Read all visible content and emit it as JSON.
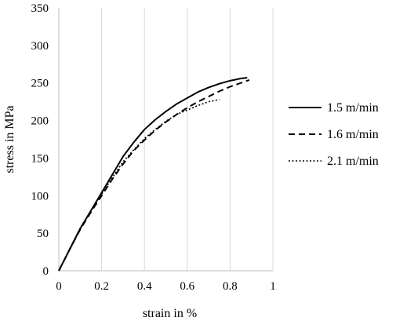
{
  "chart_data": {
    "type": "line",
    "title": "",
    "xlabel": "strain in %",
    "ylabel": "stress in MPa",
    "xlim": [
      0,
      1
    ],
    "ylim": [
      0,
      350
    ],
    "x_ticks": [
      0,
      0.2,
      0.4,
      0.6,
      0.8,
      1
    ],
    "x_tick_labels": [
      "0",
      "0.2",
      "0.4",
      "0.6",
      "0.8",
      "1"
    ],
    "y_ticks": [
      0,
      50,
      100,
      150,
      200,
      250,
      300,
      350
    ],
    "y_tick_labels": [
      "0",
      "50",
      "100",
      "150",
      "200",
      "250",
      "300",
      "350"
    ],
    "grid": "vertical",
    "legend_position": "right",
    "series": [
      {
        "name": "1.5 m/min",
        "line_style": "solid",
        "color": "#000000",
        "x": [
          0,
          0.05,
          0.1,
          0.15,
          0.2,
          0.25,
          0.3,
          0.35,
          0.4,
          0.45,
          0.5,
          0.55,
          0.6,
          0.65,
          0.7,
          0.75,
          0.8,
          0.85,
          0.88
        ],
        "y": [
          0,
          28,
          56,
          80,
          104,
          128,
          152,
          171,
          188,
          201,
          212,
          222,
          230,
          238,
          244,
          249,
          253,
          256,
          257
        ]
      },
      {
        "name": "1.6 m/min",
        "line_style": "dashed",
        "color": "#000000",
        "x": [
          0,
          0.05,
          0.1,
          0.15,
          0.2,
          0.25,
          0.3,
          0.35,
          0.4,
          0.45,
          0.5,
          0.55,
          0.6,
          0.65,
          0.7,
          0.75,
          0.8,
          0.85,
          0.89
        ],
        "y": [
          0,
          28,
          55,
          78,
          100,
          122,
          142,
          160,
          174,
          187,
          198,
          208,
          217,
          225,
          232,
          239,
          245,
          250,
          254
        ]
      },
      {
        "name": "2.1 m/min",
        "line_style": "dotted",
        "color": "#000000",
        "x": [
          0,
          0.05,
          0.1,
          0.15,
          0.2,
          0.25,
          0.3,
          0.35,
          0.4,
          0.45,
          0.5,
          0.55,
          0.6,
          0.65,
          0.7,
          0.75
        ],
        "y": [
          0,
          29,
          57,
          80,
          102,
          124,
          145,
          161,
          176,
          188,
          199,
          208,
          214,
          220,
          225,
          228
        ]
      }
    ]
  }
}
